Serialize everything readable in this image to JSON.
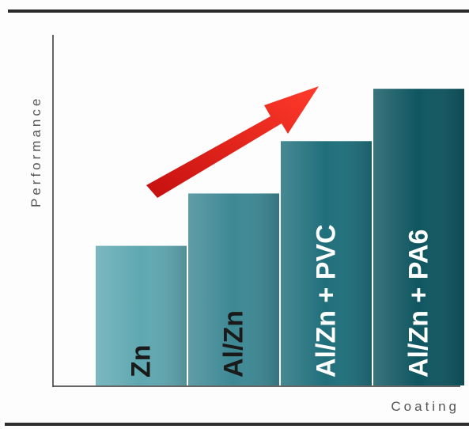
{
  "chart_data": {
    "type": "bar",
    "title": "",
    "xlabel": "Coating",
    "ylabel": "Performance",
    "categories": [
      "Zn",
      "Al/Zn",
      "Al/Zn + PVC",
      "Al/Zn + PA6"
    ],
    "values": [
      40,
      55,
      70,
      85
    ],
    "ylim": [
      0,
      100
    ],
    "grid": false,
    "legend": "none",
    "colors": {
      "bars": [
        "#5fa8b1",
        "#3d8894",
        "#1f6f7b",
        "#0f5660"
      ],
      "bar_label_fill": [
        "#1a1a1a",
        "#1a1a1a",
        "#ffffff",
        "#ffffff"
      ],
      "arrow": "#e0201f",
      "axis": "#333333"
    },
    "annotations": [
      "upward-trend-arrow"
    ]
  }
}
